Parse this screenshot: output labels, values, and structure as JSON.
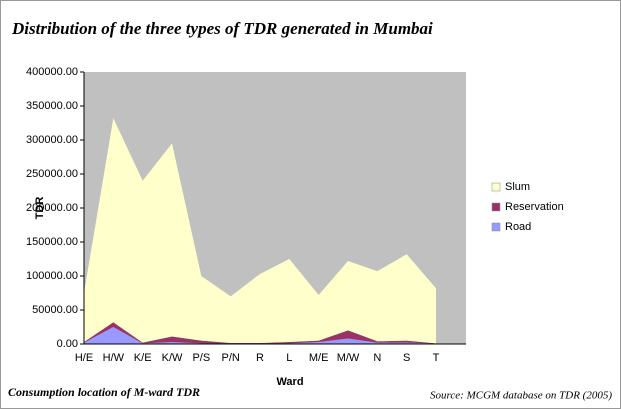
{
  "chart_data": {
    "type": "stacked_area",
    "title": "Distribution of the three types of TDR generated in Mumbai",
    "ylabel": "TDR",
    "xlabel": "Ward",
    "categories": [
      "H/E",
      "H/W",
      "K/E",
      "K/W",
      "P/S",
      "P/N",
      "R",
      "L",
      "M/E",
      "M/W",
      "N",
      "S",
      "T"
    ],
    "series": [
      {
        "name": "Road",
        "color": "#9999ff",
        "values": [
          2000,
          25000,
          1000,
          3000,
          1000,
          500,
          500,
          1000,
          3000,
          8000,
          2000,
          2000,
          500
        ]
      },
      {
        "name": "Reservation",
        "color": "#993366",
        "values": [
          1000,
          7000,
          1000,
          8000,
          4000,
          1000,
          1000,
          2000,
          2000,
          12000,
          2000,
          3000,
          500
        ]
      },
      {
        "name": "Slum",
        "color": "#ffffcc",
        "values": [
          72000,
          300000,
          238000,
          284000,
          95000,
          68500,
          101500,
          122000,
          67000,
          102000,
          103000,
          127000,
          81000
        ]
      }
    ],
    "ylim": [
      0,
      400000
    ],
    "yticks": [
      {
        "value": 0,
        "label": "0.00"
      },
      {
        "value": 50000,
        "label": "50000.00"
      },
      {
        "value": 100000,
        "label": "100000.00"
      },
      {
        "value": 150000,
        "label": "150000.00"
      },
      {
        "value": 200000,
        "label": "200000.00"
      },
      {
        "value": 250000,
        "label": "250000.00"
      },
      {
        "value": 300000,
        "label": "300000.00"
      },
      {
        "value": 350000,
        "label": "350000.00"
      },
      {
        "value": 400000,
        "label": "400000.00"
      }
    ],
    "plot_background": "#c0c0c0",
    "caption": "Consumption location of M-ward TDR",
    "source": "Source: MCGM database on TDR (2005)"
  }
}
